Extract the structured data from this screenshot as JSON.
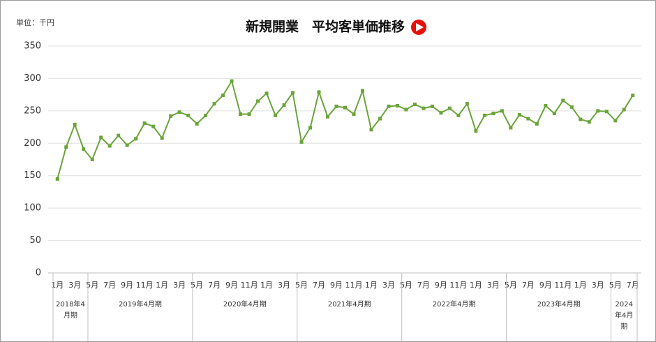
{
  "chart_data": {
    "type": "line",
    "title": "新規開業　平均客単価推移",
    "unit_label": "単位：千円",
    "color": "#6aa43a",
    "categories": [
      "1月",
      null,
      "3月",
      null,
      "5月",
      null,
      "7月",
      null,
      "9月",
      null,
      "11月",
      null,
      "1月",
      null,
      "3月",
      null,
      "5月",
      null,
      "7月",
      null,
      "9月",
      null,
      "11月",
      null,
      "1月",
      null,
      "3月",
      null,
      "5月",
      null,
      "7月",
      null,
      "9月",
      null,
      "11月",
      null,
      "1月",
      null,
      "3月",
      null,
      "5月",
      null,
      "7月",
      null,
      "9月",
      null,
      "11月",
      null,
      "1月",
      null,
      "3月",
      null,
      "5月",
      null,
      "7月",
      null,
      "9月",
      null,
      "11月",
      null,
      "1月",
      null,
      "3月",
      null,
      "5月",
      null,
      "7月"
    ],
    "values": [
      145,
      194,
      229,
      191,
      175,
      209,
      196,
      212,
      197,
      207,
      231,
      226,
      208,
      242,
      248,
      243,
      230,
      243,
      261,
      274,
      296,
      245,
      245,
      265,
      277,
      243,
      259,
      278,
      202,
      224,
      279,
      241,
      257,
      255,
      245,
      281,
      221,
      238,
      257,
      258,
      252,
      260,
      254,
      257,
      247,
      254,
      243,
      261,
      219,
      243,
      246,
      250,
      224,
      244,
      238,
      230,
      258,
      246,
      266,
      256,
      237,
      233,
      250,
      249,
      235,
      252,
      274
    ],
    "groups": [
      "2018年4月期",
      "2019年4月期",
      "2020年4月期",
      "2021年4月期",
      "2022年4月期",
      "2023年4月期",
      "2024年4月期"
    ],
    "ylim": [
      0,
      350
    ],
    "yticks": [
      0,
      50,
      100,
      150,
      200,
      250,
      300,
      350
    ],
    "grid": true
  }
}
